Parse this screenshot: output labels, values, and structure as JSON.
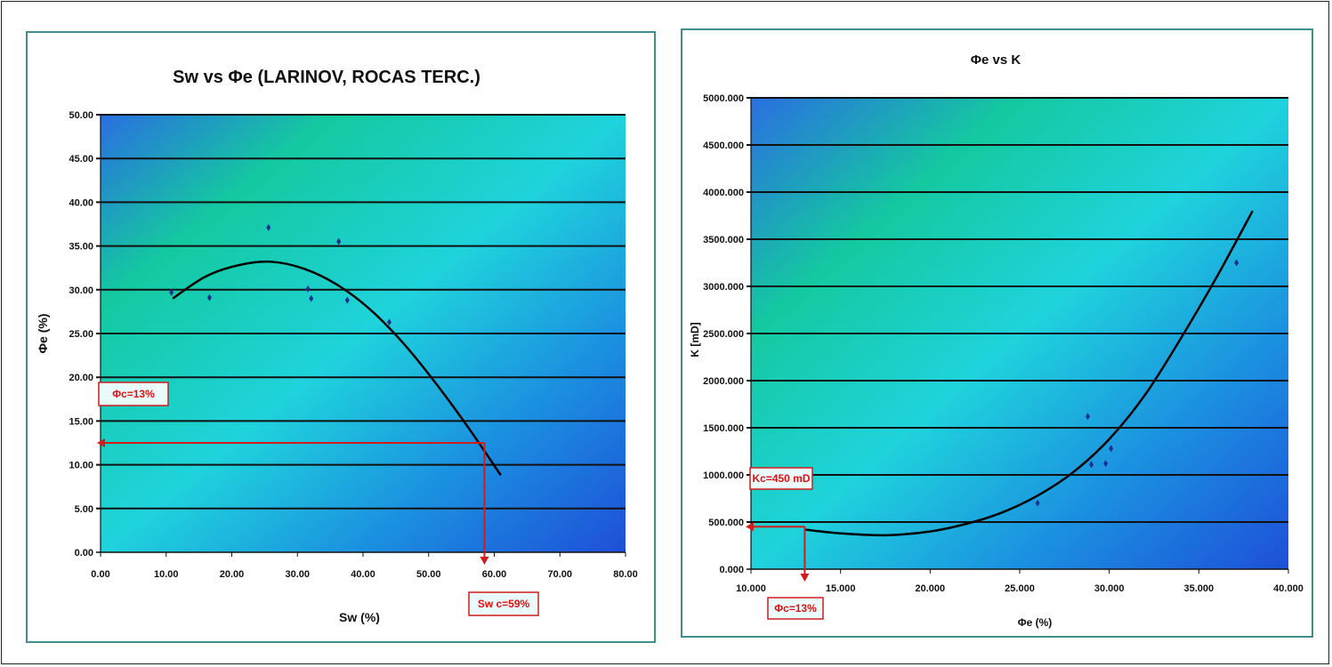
{
  "chart_data": [
    {
      "type": "scatter",
      "title": "Sw vs Φe (LARINOV, ROCAS TERC.)",
      "xlabel": "Sw (%)",
      "ylabel": "Φe (%)",
      "xlim": [
        0,
        80
      ],
      "ylim": [
        0,
        50
      ],
      "x_ticks": [
        "0.00",
        "10.00",
        "20.00",
        "30.00",
        "40.00",
        "50.00",
        "60.00",
        "70.00",
        "80.00"
      ],
      "y_ticks": [
        "0.00",
        "5.00",
        "10.00",
        "15.00",
        "20.00",
        "25.00",
        "30.00",
        "35.00",
        "40.00",
        "45.00",
        "50.00"
      ],
      "grid": true,
      "series": [
        {
          "points": [
            [
              10.8,
              29.7
            ],
            [
              16.6,
              29.1
            ],
            [
              25.6,
              37.1
            ],
            [
              31.6,
              30.1
            ],
            [
              32.1,
              29.0
            ],
            [
              36.3,
              35.5
            ],
            [
              37.6,
              28.8
            ],
            [
              44.0,
              26.3
            ]
          ]
        }
      ],
      "trendline": [
        [
          11,
          29
        ],
        [
          16,
          31.5
        ],
        [
          21,
          32.8
        ],
        [
          26,
          33.2
        ],
        [
          31,
          32.4
        ],
        [
          36,
          30.6
        ],
        [
          41,
          27.8
        ],
        [
          46,
          24.0
        ],
        [
          51,
          19.4
        ],
        [
          56,
          14.3
        ],
        [
          61,
          8.8
        ]
      ],
      "annotations": [
        {
          "text": "Φc=13%",
          "x": 0,
          "y": 12.5
        },
        {
          "text": "Sw c=59%",
          "x": 58.5,
          "y": 0
        }
      ],
      "colors": {
        "marker": "#1a2f8f",
        "annotation": "#d21b1b",
        "grid": "#111111",
        "panel_border": "#3f8f8a"
      }
    },
    {
      "type": "scatter",
      "title": "Φe vs K",
      "xlabel": "Φe (%)",
      "ylabel": "K [mD]",
      "xlim": [
        10,
        40
      ],
      "ylim": [
        0,
        5000
      ],
      "x_ticks": [
        "10.000",
        "15.000",
        "20.000",
        "25.000",
        "30.000",
        "35.000",
        "40.000"
      ],
      "y_ticks": [
        "0.000",
        "500.000",
        "1000.000",
        "1500.000",
        "2000.000",
        "2500.000",
        "3000.000",
        "3500.000",
        "4000.000",
        "4500.000",
        "5000.000"
      ],
      "grid": true,
      "series": [
        {
          "points": [
            [
              26.0,
              700
            ],
            [
              28.8,
              1620
            ],
            [
              29.0,
              1110
            ],
            [
              29.8,
              1120
            ],
            [
              30.1,
              1280
            ],
            [
              37.1,
              3250
            ]
          ]
        }
      ],
      "trendline": [
        [
          13,
          420
        ],
        [
          15,
          380
        ],
        [
          17.5,
          360
        ],
        [
          20,
          400
        ],
        [
          22,
          480
        ],
        [
          24,
          600
        ],
        [
          26,
          780
        ],
        [
          28,
          1030
        ],
        [
          30,
          1380
        ],
        [
          32,
          1850
        ],
        [
          34,
          2450
        ],
        [
          36,
          3100
        ],
        [
          38,
          3800
        ]
      ],
      "annotations": [
        {
          "text": "Kc=450 mD",
          "x": 10,
          "y": 450
        },
        {
          "text": "Φc=13%",
          "x": 13,
          "y": 0
        }
      ],
      "colors": {
        "marker": "#1a2f8f",
        "annotation": "#d21b1b",
        "grid": "#111111",
        "panel_border": "#3f8f8a"
      }
    }
  ]
}
